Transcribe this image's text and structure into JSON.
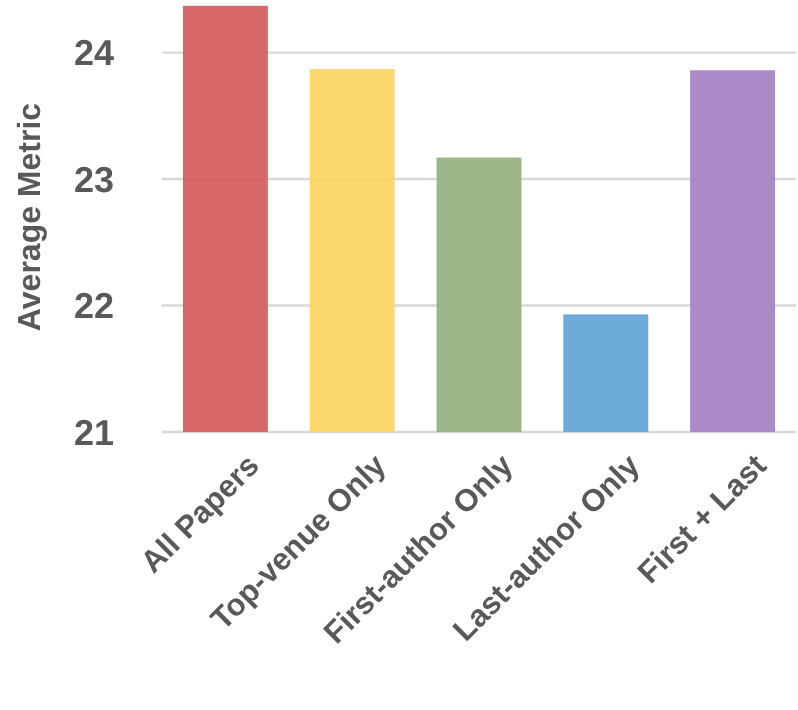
{
  "chart_data": {
    "type": "bar",
    "ylabel": "Average Metric",
    "categories": [
      "All Papers",
      "Top-venue Only",
      "First-author Only",
      "Last-author Only",
      "First + Last"
    ],
    "values": [
      24.37,
      23.87,
      23.17,
      21.93,
      23.86
    ],
    "colors": [
      "#d6605f",
      "#fbd564",
      "#98b283",
      "#64a7d8",
      "#a884c4"
    ],
    "ylim": [
      21,
      24.4
    ],
    "yticks": [
      21,
      22,
      23,
      24
    ],
    "grid": "y"
  }
}
